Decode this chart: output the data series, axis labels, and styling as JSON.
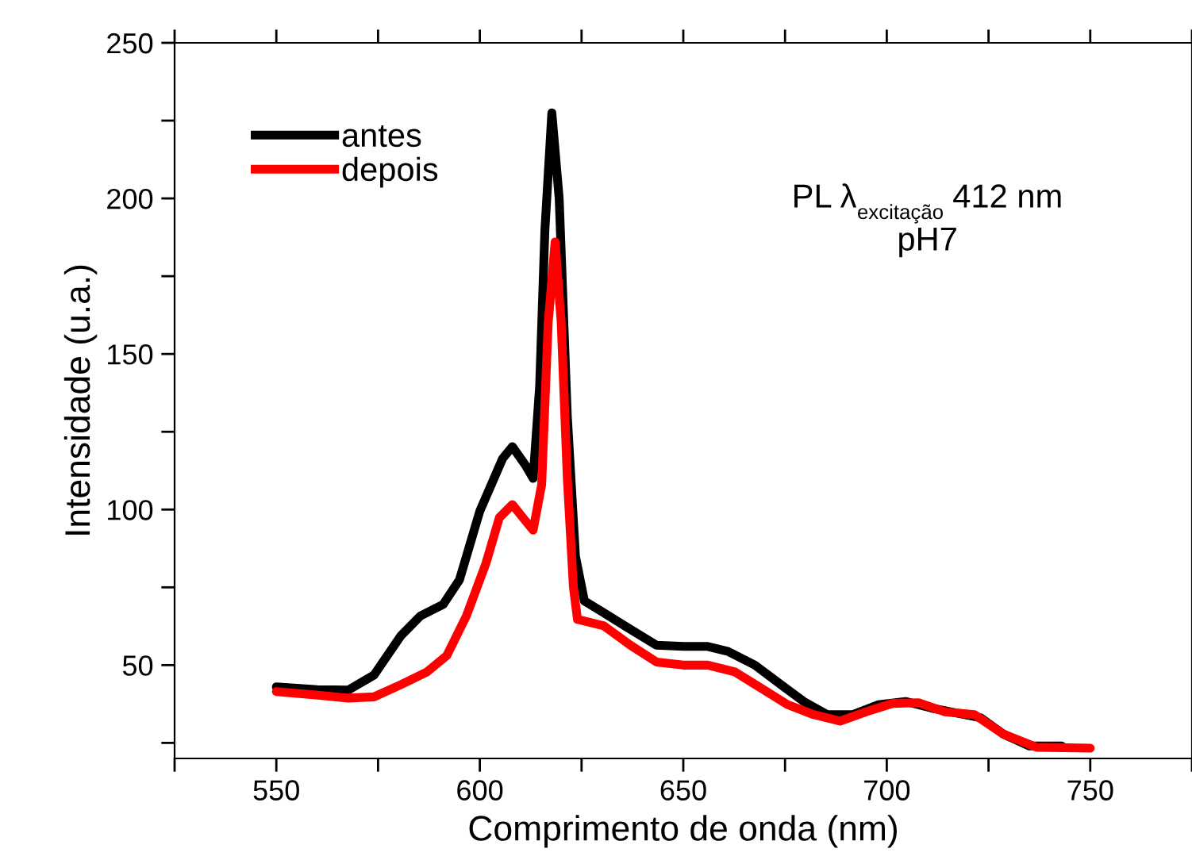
{
  "chart_data": {
    "type": "line",
    "xlabel": "Comprimento de onda (nm)",
    "ylabel": "Intensidade (u.a.)",
    "xlim": [
      525,
      775
    ],
    "xticks": [
      {
        "value": 525,
        "label": null
      },
      550,
      {
        "value": 575,
        "label": null
      },
      600,
      {
        "value": 625,
        "label": null
      },
      650,
      {
        "value": 675,
        "label": null
      },
      700,
      {
        "value": 725,
        "label": null
      },
      750,
      {
        "value": 775,
        "label": null
      }
    ],
    "ylim": [
      20,
      250
    ],
    "yticks": [
      {
        "value": 25,
        "label": null
      },
      50,
      {
        "value": 75,
        "label": null
      },
      100,
      {
        "value": 125,
        "label": null
      },
      150,
      {
        "value": 175,
        "label": null
      },
      200,
      {
        "value": 225,
        "label": null
      },
      250
    ],
    "legend": "top left",
    "grid": false,
    "marker": "none",
    "line_style": "solid",
    "annotations": [
      "PL λ$_{excitação}$ 412 nm",
      "pH7"
    ],
    "series": [
      {
        "name": "antes",
        "color": "#000000",
        "x": [
          550,
          560,
          567.7,
          574,
          580.6,
          585.4,
          591,
          595,
          600,
          605.6,
          608,
          611.2,
          613.1,
          614.7,
          616,
          617.7,
          619.5,
          621.5,
          623.5,
          625.7,
          630.5,
          637,
          643.4,
          650,
          656,
          661,
          667.6,
          674,
          679.6,
          685.3,
          691.7,
          698,
          704.6,
          711,
          717.5,
          723,
          728.7,
          735,
          743
        ],
        "values": [
          43,
          42.1,
          42,
          46.8,
          59.4,
          65.8,
          69.5,
          77.4,
          99.5,
          116.4,
          120.2,
          114.3,
          110,
          139.6,
          190,
          227.5,
          200,
          130,
          85,
          70.6,
          66.8,
          61.5,
          56.4,
          56,
          56,
          54.4,
          50,
          43.7,
          38.3,
          34.1,
          34.1,
          37.3,
          38.3,
          36.2,
          34.5,
          33.1,
          27.8,
          24,
          24
        ]
      },
      {
        "name": "depois",
        "color": "#ff0000",
        "x": [
          550,
          559.7,
          567.7,
          574,
          580.6,
          587,
          591.9,
          596.7,
          601.5,
          604.8,
          608,
          611.2,
          613.1,
          615.2,
          616.8,
          618.5,
          620,
          621.5,
          623,
          624,
          630.5,
          637,
          643.4,
          650,
          656,
          662.7,
          669,
          675.6,
          682,
          688.5,
          694.9,
          701.4,
          707.8,
          714.3,
          721.5,
          728.7,
          736.8,
          750
        ],
        "values": [
          41.5,
          40.4,
          39.4,
          39.8,
          43.7,
          47.8,
          53.1,
          65.8,
          82.7,
          97.4,
          101.6,
          96.4,
          93.4,
          108,
          160,
          186,
          160,
          110,
          75,
          64.7,
          62.6,
          56.4,
          51,
          50,
          50,
          47.8,
          42.7,
          37.3,
          34.1,
          32,
          35,
          37.7,
          37.9,
          35,
          34.1,
          27.8,
          23.6,
          23.3
        ]
      }
    ]
  }
}
